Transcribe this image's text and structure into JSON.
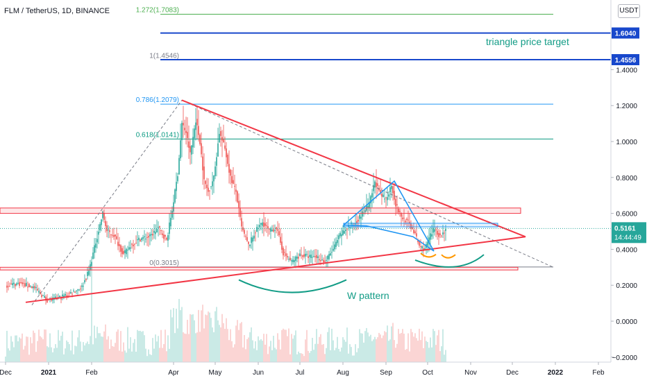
{
  "header": {
    "symbol_line": "FLM / TetherUS, 1D, BINANCE"
  },
  "currency_button": "USDT",
  "price_scale": {
    "ticks": [
      {
        "v": 1.4,
        "label": "1.4000"
      },
      {
        "v": 1.2,
        "label": "1.2000"
      },
      {
        "v": 1.0,
        "label": "1.0000"
      },
      {
        "v": 0.8,
        "label": "0.8000"
      },
      {
        "v": 0.6,
        "label": "0.6000"
      },
      {
        "v": 0.4,
        "label": "0.4000"
      },
      {
        "v": 0.2,
        "label": "0.2000"
      },
      {
        "v": 0.0,
        "label": "0.0000"
      },
      {
        "v": -0.2,
        "label": "−0.2000"
      }
    ],
    "badges": [
      {
        "v": 1.604,
        "label": "1.6040",
        "color": "#1848cc"
      },
      {
        "v": 1.4556,
        "label": "1.4556",
        "color": "#1848cc"
      }
    ],
    "last_price": {
      "v": 0.5161,
      "price": "0.5161",
      "countdown": "14:44:49",
      "color": "#26a69a"
    }
  },
  "time_scale": {
    "ticks": [
      {
        "t": 0,
        "label": "Dec"
      },
      {
        "t": 31,
        "label": "2021"
      },
      {
        "t": 62,
        "label": "Feb"
      },
      {
        "t": 121,
        "label": "Apr"
      },
      {
        "t": 151,
        "label": "May"
      },
      {
        "t": 182,
        "label": "Jun"
      },
      {
        "t": 212,
        "label": "Jul"
      },
      {
        "t": 243,
        "label": "Aug"
      },
      {
        "t": 274,
        "label": "Sep"
      },
      {
        "t": 304,
        "label": "Oct"
      },
      {
        "t": 335,
        "label": "Nov"
      },
      {
        "t": 365,
        "label": "Dec"
      },
      {
        "t": 396,
        "label": "2022"
      },
      {
        "t": 427,
        "label": "Feb"
      }
    ]
  },
  "annotations": {
    "triangle_target": "triangle price target",
    "w_pattern": "W pattern"
  },
  "fib": [
    {
      "level": "1.272(1.7083)",
      "price": 1.7083,
      "color": "#4caf50"
    },
    {
      "level": "1(1.4546)",
      "price": 1.4546,
      "color": "#787b86"
    },
    {
      "level": "0.786(1.2079)",
      "price": 1.2079,
      "color": "#2196f3"
    },
    {
      "level": "0.618(1.0141)",
      "price": 1.0141,
      "color": "#089981"
    },
    {
      "level": "0(0.3015)",
      "price": 0.3015,
      "color": "#787b86"
    }
  ],
  "colors": {
    "up": "#26a69a",
    "down": "#ef5350",
    "trendline": "#f23645",
    "target": "#1848cc",
    "wedge": "#2196f3"
  },
  "chart_data": {
    "type": "candlestick",
    "title": "FLM / TetherUS, 1D, BINANCE",
    "x_unit": "days since 2020-12-01",
    "ylim": [
      -0.22,
      1.75
    ],
    "xlim": [
      0,
      434
    ],
    "price_path": [
      [
        0,
        0.2
      ],
      [
        10,
        0.21
      ],
      [
        20,
        0.19
      ],
      [
        27,
        0.14
      ],
      [
        29,
        0.12
      ],
      [
        35,
        0.12
      ],
      [
        45,
        0.15
      ],
      [
        55,
        0.19
      ],
      [
        60,
        0.28
      ],
      [
        70,
        0.6
      ],
      [
        73,
        0.5
      ],
      [
        78,
        0.48
      ],
      [
        85,
        0.37
      ],
      [
        90,
        0.42
      ],
      [
        97,
        0.46
      ],
      [
        104,
        0.47
      ],
      [
        110,
        0.52
      ],
      [
        116,
        0.45
      ],
      [
        120,
        0.62
      ],
      [
        124,
        0.82
      ],
      [
        127,
        1.1
      ],
      [
        130,
        1.05
      ],
      [
        133,
        0.93
      ],
      [
        137,
        1.12
      ],
      [
        140,
        1.0
      ],
      [
        143,
        0.78
      ],
      [
        146,
        0.72
      ],
      [
        150,
        0.8
      ],
      [
        154,
        1.05
      ],
      [
        158,
        0.96
      ],
      [
        162,
        0.8
      ],
      [
        166,
        0.72
      ],
      [
        170,
        0.52
      ],
      [
        175,
        0.42
      ],
      [
        180,
        0.5
      ],
      [
        185,
        0.55
      ],
      [
        190,
        0.5
      ],
      [
        195,
        0.52
      ],
      [
        200,
        0.38
      ],
      [
        206,
        0.33
      ],
      [
        212,
        0.37
      ],
      [
        218,
        0.36
      ],
      [
        224,
        0.36
      ],
      [
        230,
        0.33
      ],
      [
        236,
        0.4
      ],
      [
        241,
        0.48
      ],
      [
        246,
        0.52
      ],
      [
        252,
        0.55
      ],
      [
        257,
        0.6
      ],
      [
        262,
        0.65
      ],
      [
        266,
        0.78
      ],
      [
        270,
        0.7
      ],
      [
        274,
        0.68
      ],
      [
        278,
        0.76
      ],
      [
        281,
        0.65
      ],
      [
        285,
        0.58
      ],
      [
        290,
        0.55
      ],
      [
        294,
        0.5
      ],
      [
        298,
        0.42
      ],
      [
        302,
        0.4
      ],
      [
        305,
        0.46
      ],
      [
        309,
        0.52
      ],
      [
        313,
        0.47
      ],
      [
        317,
        0.51
      ]
    ],
    "last": 0.5161
  }
}
